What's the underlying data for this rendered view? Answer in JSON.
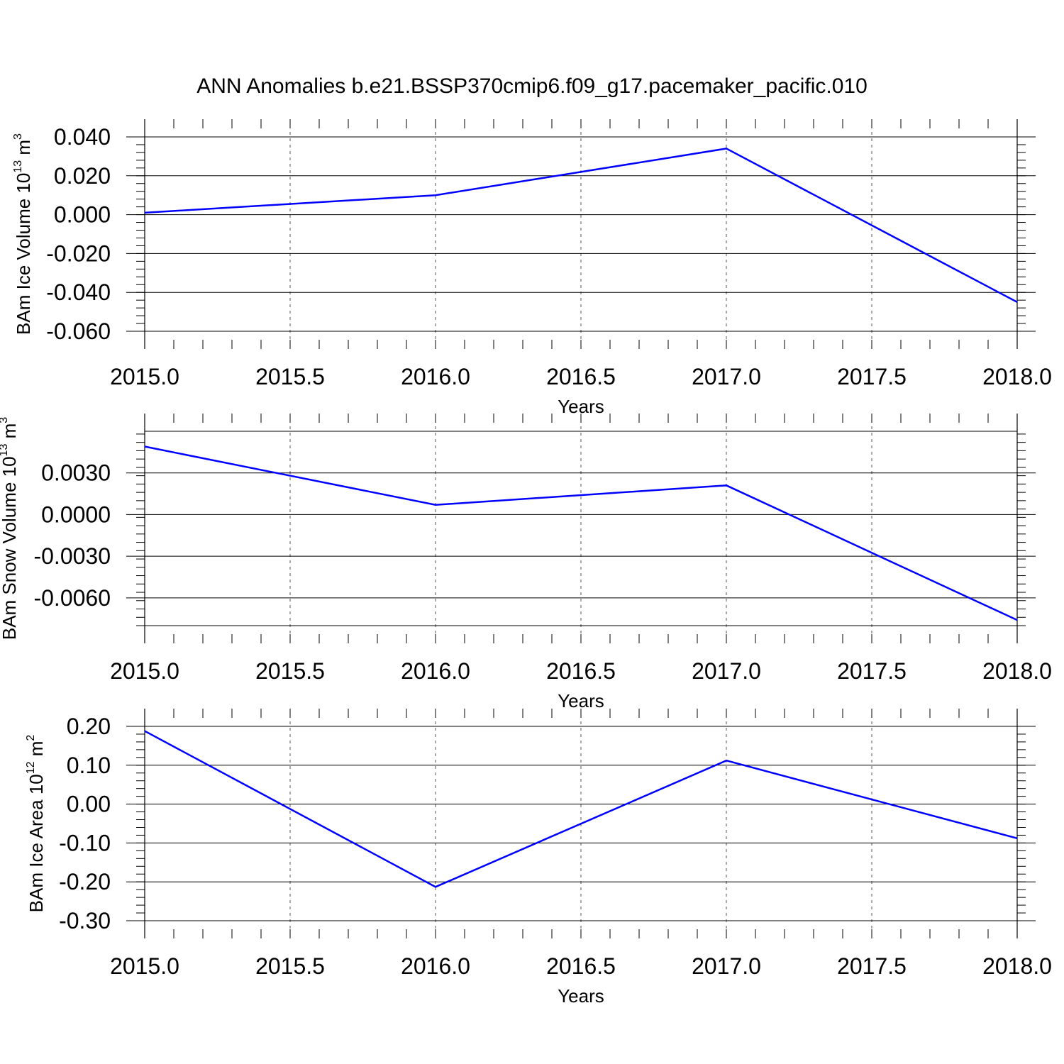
{
  "title": "ANN Anomalies b.e21.BSSP370cmip6.f09_g17.pacemaker_pacific.010",
  "line_color": "#0000ff",
  "chart_data": [
    {
      "type": "line",
      "xlabel": "Years",
      "ylabel": "BAm Ice Volume 10",
      "ylabel_exp": "13",
      "ylabel_unit": " m",
      "ylabel_unit_exp": "3",
      "x": [
        2015.0,
        2016.0,
        2017.0,
        2018.0
      ],
      "y": [
        0.001,
        0.01,
        0.034,
        -0.045
      ],
      "xlim": [
        2015.0,
        2018.0
      ],
      "ylim": [
        -0.06,
        0.04
      ],
      "xticks": [
        "2015.0",
        "2015.5",
        "2016.0",
        "2016.5",
        "2017.0",
        "2017.5",
        "2018.0"
      ],
      "yticks": [
        0.04,
        0.02,
        0.0,
        -0.02,
        -0.04,
        -0.06
      ],
      "ytick_labels": [
        "0.040",
        "0.020",
        "0.000",
        "-0.020",
        "-0.040",
        "-0.060"
      ],
      "grid": "vertical dashed"
    },
    {
      "type": "line",
      "xlabel": "Years",
      "ylabel": "BAm Snow Volume 10",
      "ylabel_exp": "13",
      "ylabel_unit": " m",
      "ylabel_unit_exp": "3",
      "x": [
        2015.0,
        2016.0,
        2017.0,
        2018.0
      ],
      "y": [
        0.0049,
        0.0007,
        0.0021,
        -0.0076
      ],
      "xlim": [
        2015.0,
        2018.0
      ],
      "ylim": [
        -0.008,
        0.006
      ],
      "xticks": [
        "2015.0",
        "2015.5",
        "2016.0",
        "2016.5",
        "2017.0",
        "2017.5",
        "2018.0"
      ],
      "yticks": [
        0.003,
        0.0,
        -0.003,
        -0.006
      ],
      "ytick_labels": [
        "0.0030",
        "0.0000",
        "-0.0030",
        "-0.0060"
      ],
      "grid": "vertical dashed"
    },
    {
      "type": "line",
      "xlabel": "Years",
      "ylabel": "BAm Ice Area 10",
      "ylabel_exp": "12",
      "ylabel_unit": " m",
      "ylabel_unit_exp": "2",
      "x": [
        2015.0,
        2016.0,
        2017.0,
        2018.0
      ],
      "y": [
        0.188,
        -0.213,
        0.112,
        -0.088
      ],
      "xlim": [
        2015.0,
        2018.0
      ],
      "ylim": [
        -0.3,
        0.2
      ],
      "xticks": [
        "2015.0",
        "2015.5",
        "2016.0",
        "2016.5",
        "2017.0",
        "2017.5",
        "2018.0"
      ],
      "yticks": [
        0.2,
        0.1,
        0.0,
        -0.1,
        -0.2,
        -0.3
      ],
      "ytick_labels": [
        "0.20",
        "0.10",
        "0.00",
        "-0.10",
        "-0.20",
        "-0.30"
      ],
      "grid": "vertical dashed"
    }
  ]
}
